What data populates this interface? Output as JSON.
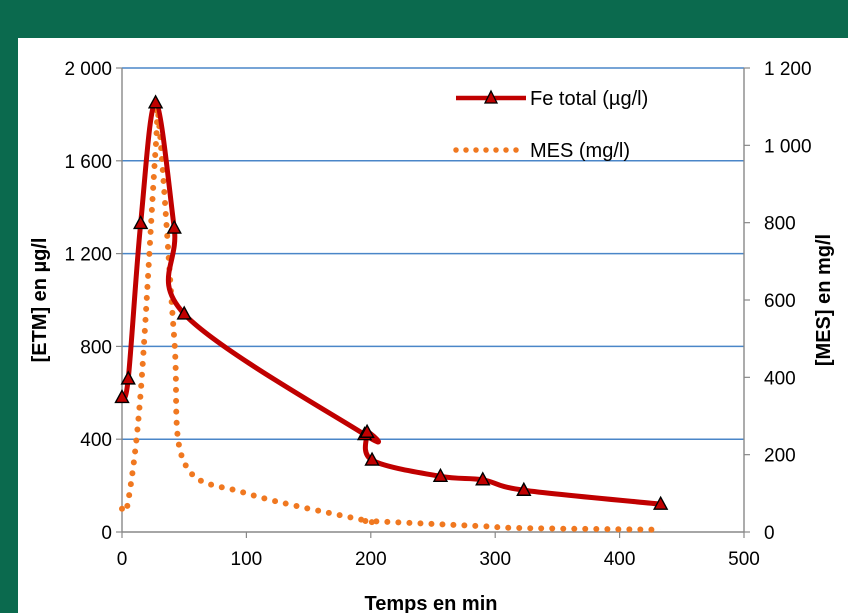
{
  "chart_data": {
    "type": "line",
    "xlabel": "Temps en min",
    "ylabel_left": "[ETM] en µg/l",
    "ylabel_right": "[MES] en mg/l",
    "xlim": [
      0,
      500
    ],
    "ylim_left": [
      0,
      2000
    ],
    "ylim_right": [
      0,
      1200
    ],
    "x_ticks": [
      "0",
      "100",
      "200",
      "300",
      "400",
      "500"
    ],
    "y_left_ticks": [
      "0",
      "400",
      "800",
      "1 200",
      "1 600",
      "2 000"
    ],
    "y_right_ticks": [
      "0",
      "200",
      "400",
      "600",
      "800",
      "1 000",
      "1 200"
    ],
    "grid": true,
    "legend_position": "top-right",
    "series": [
      {
        "name": "Fe total (µg/l)",
        "axis": "left",
        "color": "#c00000",
        "marker": "triangle",
        "x": [
          0,
          5,
          15,
          27,
          42,
          50,
          195,
          197,
          201,
          256,
          290,
          323,
          433
        ],
        "y": [
          580,
          660,
          1330,
          1850,
          1310,
          940,
          420,
          430,
          310,
          240,
          225,
          180,
          120
        ]
      },
      {
        "name": "MES (mg/l)",
        "axis": "right",
        "color": "#f07820",
        "marker": "dotted",
        "x": [
          0,
          5,
          15,
          27,
          30,
          42,
          50,
          100,
          195,
          197,
          201,
          256,
          290,
          323,
          433
        ],
        "y": [
          60,
          80,
          360,
          990,
          1050,
          500,
          180,
          100,
          30,
          28,
          28,
          20,
          15,
          10,
          6
        ]
      }
    ]
  }
}
